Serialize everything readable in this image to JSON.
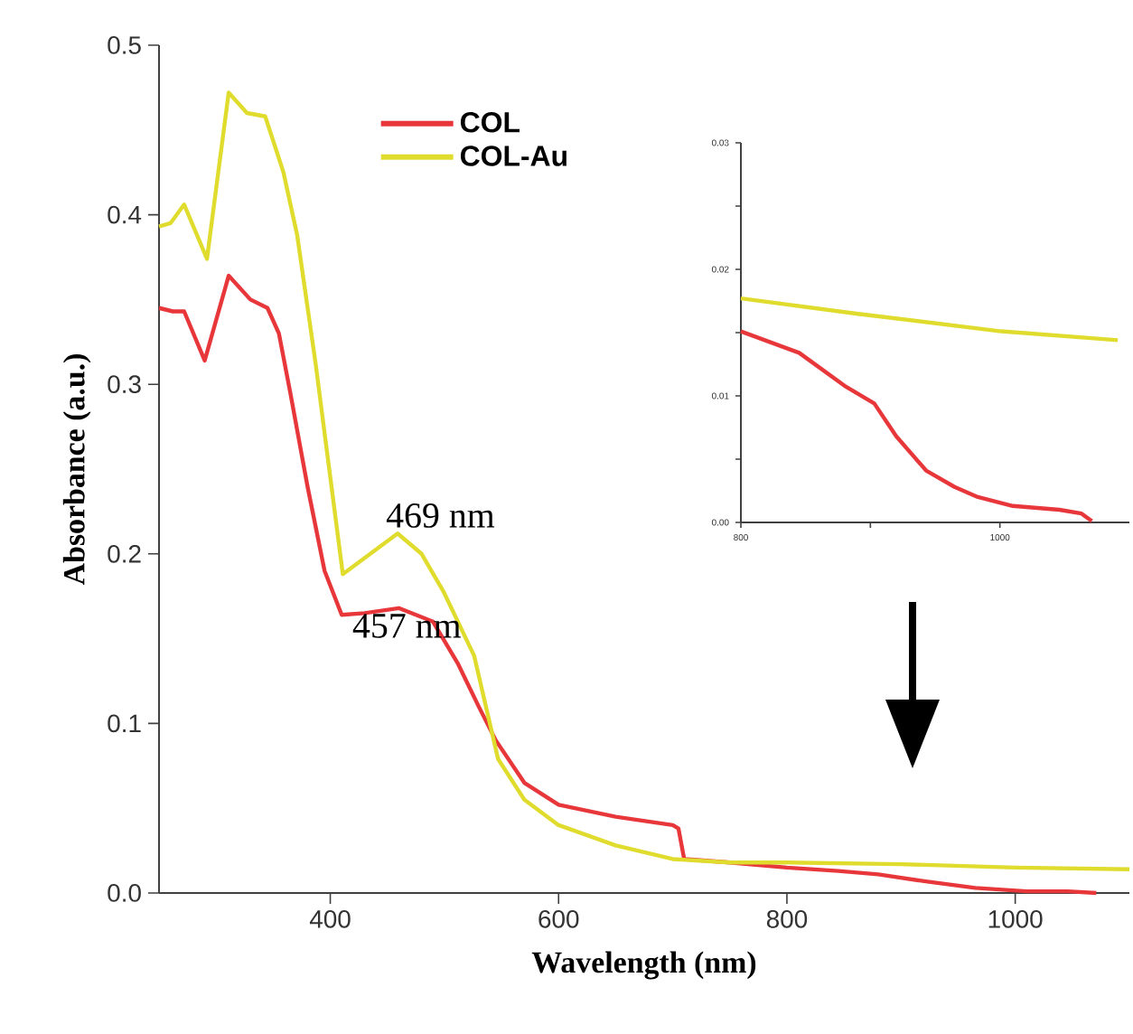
{
  "chart_data": [
    {
      "type": "line",
      "xlabel": "Wavelength (nm)",
      "ylabel": "Absorbance (a.u.)",
      "xlim": [
        250,
        1100
      ],
      "ylim": [
        0,
        0.5
      ],
      "xticks": [
        400,
        600,
        800,
        1000
      ],
      "yticks": [
        {
          "value": 0,
          "label": "0.0"
        },
        {
          "value": 0.1,
          "label": "0.1"
        },
        {
          "value": 0.2,
          "label": "0.2"
        },
        {
          "value": 0.3,
          "label": "0.3"
        },
        {
          "value": 0.4,
          "label": "0.4"
        },
        {
          "value": 0.5,
          "label": "0.5"
        }
      ],
      "legend": "top",
      "annotations": [
        {
          "text": "469 nm",
          "x": 469,
          "y": 0.212
        },
        {
          "text": "457 nm",
          "x": 457,
          "y": 0.168
        }
      ],
      "series": [
        {
          "name": "COL",
          "color": "#e8373a",
          "x": [
            250,
            262,
            272,
            290,
            311,
            330,
            345,
            355,
            365,
            380,
            395,
            410,
            430,
            460,
            490,
            512,
            530,
            545,
            570,
            600,
            650,
            700,
            705,
            710,
            750,
            800,
            845,
            880,
            920,
            965,
            1010,
            1046,
            1071
          ],
          "values": [
            0.345,
            0.343,
            0.343,
            0.314,
            0.364,
            0.35,
            0.345,
            0.33,
            0.295,
            0.24,
            0.19,
            0.164,
            0.165,
            0.168,
            0.16,
            0.135,
            0.11,
            0.09,
            0.065,
            0.052,
            0.045,
            0.04,
            0.038,
            0.02,
            0.018,
            0.015,
            0.013,
            0.011,
            0.007,
            0.003,
            0.001,
            0.001,
            0
          ]
        },
        {
          "name": "COL-Au",
          "color": "#e0dc2e",
          "x": [
            250,
            260,
            272,
            292,
            311,
            327,
            343,
            359,
            371,
            387,
            411,
            435,
            459,
            480,
            499,
            526,
            547,
            570,
            600,
            650,
            700,
            750,
            800,
            900,
            1000,
            1100
          ],
          "values": [
            0.393,
            0.395,
            0.406,
            0.374,
            0.472,
            0.46,
            0.458,
            0.425,
            0.388,
            0.313,
            0.188,
            0.2,
            0.212,
            0.2,
            0.178,
            0.14,
            0.079,
            0.055,
            0.04,
            0.028,
            0.02,
            0.018,
            0.018,
            0.017,
            0.015,
            0.014
          ]
        }
      ]
    },
    {
      "type": "line",
      "xlim": [
        800,
        1100
      ],
      "ylim": [
        0,
        0.03
      ],
      "xticks": [
        800,
        {
          "value": 900,
          "label": null
        },
        1000
      ],
      "yticks": [
        {
          "value": 0,
          "label": "0.00"
        },
        {
          "value": 0.005,
          "label": null
        },
        {
          "value": 0.01,
          "label": "0.01"
        },
        {
          "value": 0.015,
          "label": null
        },
        {
          "value": 0.02,
          "label": "0.02"
        },
        {
          "value": 0.025,
          "label": null
        },
        {
          "value": 0.03,
          "label": "0.03"
        }
      ],
      "series": [
        {
          "color": "#e8373a",
          "x": [
            800,
            845,
            880,
            903,
            920,
            943,
            965,
            983,
            1010,
            1046,
            1063,
            1071
          ],
          "values": [
            0.0151,
            0.0134,
            0.0108,
            0.0094,
            0.0068,
            0.0041,
            0.0028,
            0.002,
            0.0013,
            0.001,
            0.0007,
            0.0001
          ]
        },
        {
          "color": "#e0dc2e",
          "x": [
            800,
            889,
            1001,
            1091
          ],
          "values": [
            0.0177,
            0.0165,
            0.0151,
            0.0144
          ]
        }
      ]
    }
  ]
}
